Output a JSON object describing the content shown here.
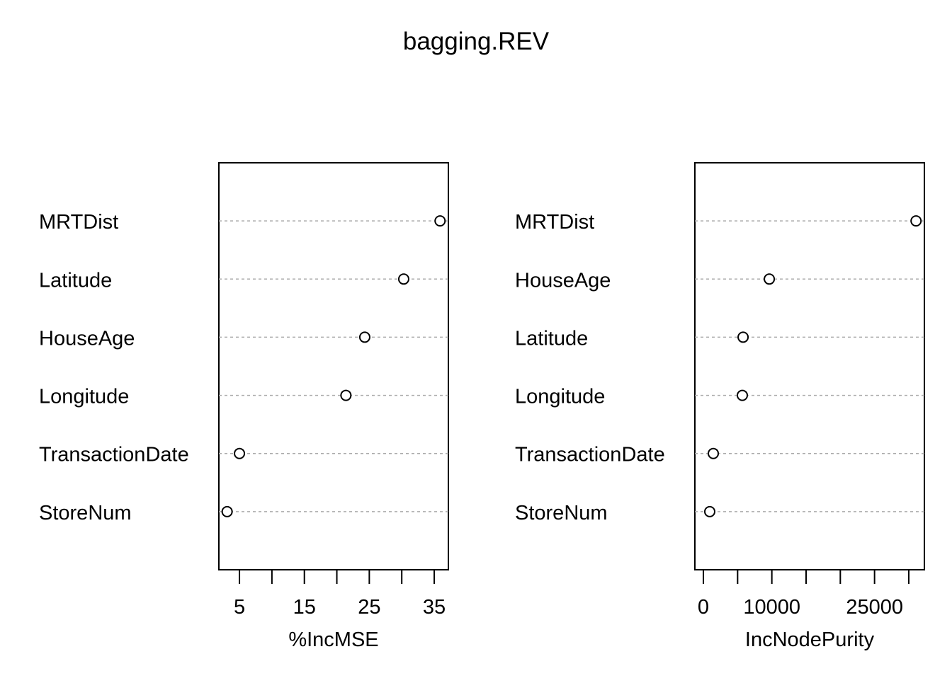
{
  "title": "bagging.REV",
  "chart_data": [
    {
      "type": "dot",
      "xlabel": "%IncMSE",
      "categories": [
        "MRTDist",
        "Latitude",
        "HouseAge",
        "Longitude",
        "TransactionDate",
        "StoreNum"
      ],
      "values": [
        35.9,
        30.3,
        24.3,
        21.4,
        5.0,
        3.1
      ],
      "xlim": [
        1.83,
        37.18
      ],
      "xticks": [
        5,
        15,
        25,
        35
      ],
      "xminorticks": [
        10,
        20,
        30
      ],
      "grid": true,
      "color": "#000000"
    },
    {
      "type": "dot",
      "xlabel": "IncNodePurity",
      "categories": [
        "MRTDist",
        "HouseAge",
        "Latitude",
        "Longitude",
        "TransactionDate",
        "StoreNum"
      ],
      "values": [
        31060,
        9630,
        5800,
        5690,
        1450,
        930
      ],
      "xlim": [
        -1242,
        32277
      ],
      "xticks": [
        0,
        10000,
        25000
      ],
      "xminorticks": [
        5000,
        15000,
        20000,
        30000
      ],
      "grid": true,
      "color": "#000000"
    }
  ]
}
